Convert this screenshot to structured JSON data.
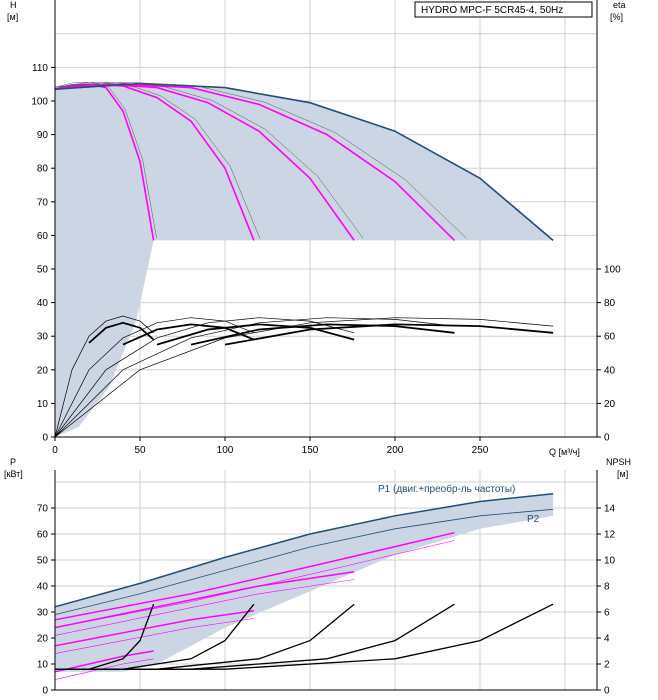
{
  "colors": {
    "envelope": "#cbd5e3",
    "duty_curve": "#1f4e79",
    "magenta": "#ff00ff",
    "black": "#000000",
    "grid": "#d0d0d0"
  },
  "chart_data": [
    {
      "type": "line",
      "panel": "head-efficiency",
      "title": "HYDRO MPC-F 5CR45-4, 50Hz",
      "ylabel_left": "H",
      "yunit_left": "[м]",
      "ylabel_right": "eta",
      "yunit_right": "[%]",
      "xlabel": "Q [м³/ч]",
      "xlim": [
        0,
        300
      ],
      "ylim_left": [
        0,
        120
      ],
      "ylim_right": [
        0,
        170
      ],
      "x_ticks": [
        "0",
        "50",
        "100",
        "150",
        "200",
        "250"
      ],
      "y_ticks_left": [
        "0",
        "10",
        "20",
        "30",
        "40",
        "50",
        "60",
        "70",
        "80",
        "90",
        "100",
        "110"
      ],
      "y_ticks_right": [
        "0",
        "20",
        "40",
        "60",
        "80",
        "100"
      ],
      "grid": true,
      "max_head_curves": [
        {
          "pumps": 1,
          "points": [
            [
              0,
              103.5
            ],
            [
              10,
              104.8
            ],
            [
              20,
              105
            ],
            [
              30,
              104
            ],
            [
              40,
              97
            ],
            [
              50,
              82
            ],
            [
              58,
              58.5
            ]
          ]
        },
        {
          "pumps": 2,
          "points": [
            [
              0,
              103.5
            ],
            [
              20,
              105
            ],
            [
              40,
              104.5
            ],
            [
              60,
              101
            ],
            [
              80,
              94
            ],
            [
              100,
              80
            ],
            [
              117,
              58.5
            ]
          ]
        },
        {
          "pumps": 3,
          "points": [
            [
              0,
              103.5
            ],
            [
              30,
              105
            ],
            [
              60,
              104
            ],
            [
              90,
              99.5
            ],
            [
              120,
              91
            ],
            [
              150,
              77
            ],
            [
              176,
              58.5
            ]
          ]
        },
        {
          "pumps": 4,
          "points": [
            [
              0,
              103.5
            ],
            [
              40,
              105
            ],
            [
              80,
              104
            ],
            [
              120,
              99
            ],
            [
              160,
              90
            ],
            [
              200,
              76
            ],
            [
              235,
              58.5
            ]
          ]
        },
        {
          "pumps": 5,
          "points": [
            [
              0,
              103.5
            ],
            [
              50,
              105.2
            ],
            [
              100,
              104
            ],
            [
              150,
              99.5
            ],
            [
              200,
              91
            ],
            [
              250,
              77
            ],
            [
              293,
              58.5
            ]
          ]
        }
      ],
      "envelope_min_head": 58.5,
      "efficiency_curves": [
        {
          "pumps": 1,
          "points": [
            [
              0,
              0
            ],
            [
              10,
              40
            ],
            [
              20,
              60
            ],
            [
              30,
              69
            ],
            [
              40,
              72
            ],
            [
              50,
              69
            ],
            [
              58,
              62
            ]
          ]
        },
        {
          "pumps": 2,
          "points": [
            [
              0,
              0
            ],
            [
              20,
              40
            ],
            [
              40,
              59
            ],
            [
              60,
              68
            ],
            [
              80,
              71
            ],
            [
              100,
              69
            ],
            [
              117,
              62
            ]
          ]
        },
        {
          "pumps": 3,
          "points": [
            [
              0,
              0
            ],
            [
              30,
              40
            ],
            [
              60,
              59
            ],
            [
              90,
              68
            ],
            [
              120,
              71
            ],
            [
              150,
              69
            ],
            [
              176,
              62
            ]
          ]
        },
        {
          "pumps": 4,
          "points": [
            [
              0,
              0
            ],
            [
              40,
              40
            ],
            [
              80,
              59
            ],
            [
              120,
              68
            ],
            [
              160,
              71
            ],
            [
              200,
              70
            ],
            [
              235,
              66
            ]
          ]
        },
        {
          "pumps": 5,
          "points": [
            [
              0,
              0
            ],
            [
              50,
              40
            ],
            [
              100,
              59
            ],
            [
              150,
              68
            ],
            [
              200,
              71
            ],
            [
              250,
              70
            ],
            [
              293,
              66
            ]
          ]
        }
      ]
    },
    {
      "type": "line",
      "panel": "power-npsh",
      "ylabel_left": "P",
      "yunit_left": "[кВт]",
      "ylabel_right": "NPSH",
      "yunit_right": "[м]",
      "xlim": [
        0,
        300
      ],
      "ylim_left": [
        0,
        80
      ],
      "ylim_right": [
        0,
        16
      ],
      "y_ticks_left": [
        "0",
        "10",
        "20",
        "30",
        "40",
        "50",
        "60",
        "70"
      ],
      "y_ticks_right": [
        "0",
        "2",
        "4",
        "6",
        "8",
        "10",
        "12",
        "14"
      ],
      "labels": {
        "p1": "P1 (двиг.+преобр-ль частоты)",
        "p2": "P2"
      },
      "p1_curve": [
        [
          0,
          32
        ],
        [
          50,
          41
        ],
        [
          100,
          51
        ],
        [
          150,
          60
        ],
        [
          200,
          67
        ],
        [
          250,
          72.5
        ],
        [
          293,
          75.5
        ]
      ],
      "p2_curve": [
        [
          0,
          29
        ],
        [
          50,
          37
        ],
        [
          100,
          46
        ],
        [
          150,
          55
        ],
        [
          200,
          62
        ],
        [
          250,
          67
        ],
        [
          293,
          69.5
        ]
      ],
      "magenta_power_curves": [
        {
          "pumps": 1,
          "points": [
            [
              0,
              7
            ],
            [
              20,
              10
            ],
            [
              40,
              13
            ],
            [
              58,
              15
            ]
          ]
        },
        {
          "pumps": 2,
          "points": [
            [
              0,
              17
            ],
            [
              40,
              22
            ],
            [
              80,
              27
            ],
            [
              117,
              30.5
            ]
          ]
        },
        {
          "pumps": 3,
          "points": [
            [
              0,
              24
            ],
            [
              60,
              32
            ],
            [
              120,
              40
            ],
            [
              176,
              45.5
            ]
          ]
        },
        {
          "pumps": 4,
          "points": [
            [
              0,
              27
            ],
            [
              80,
              37
            ],
            [
              160,
              49
            ],
            [
              235,
              60.5
            ]
          ]
        }
      ],
      "npsh_curves": [
        {
          "pumps": 1,
          "points": [
            [
              0,
              1.6
            ],
            [
              20,
              1.6
            ],
            [
              40,
              2.4
            ],
            [
              50,
              3.8
            ],
            [
              58,
              6.6
            ]
          ]
        },
        {
          "pumps": 2,
          "points": [
            [
              0,
              1.6
            ],
            [
              40,
              1.6
            ],
            [
              80,
              2.4
            ],
            [
              100,
              3.8
            ],
            [
              117,
              6.6
            ]
          ]
        },
        {
          "pumps": 3,
          "points": [
            [
              0,
              1.6
            ],
            [
              60,
              1.6
            ],
            [
              120,
              2.4
            ],
            [
              150,
              3.8
            ],
            [
              176,
              6.6
            ]
          ]
        },
        {
          "pumps": 4,
          "points": [
            [
              0,
              1.6
            ],
            [
              80,
              1.6
            ],
            [
              160,
              2.4
            ],
            [
              200,
              3.8
            ],
            [
              235,
              6.6
            ]
          ]
        },
        {
          "pumps": 5,
          "points": [
            [
              0,
              1.6
            ],
            [
              100,
              1.6
            ],
            [
              200,
              2.4
            ],
            [
              250,
              3.8
            ],
            [
              293,
              6.6
            ]
          ]
        }
      ]
    }
  ]
}
